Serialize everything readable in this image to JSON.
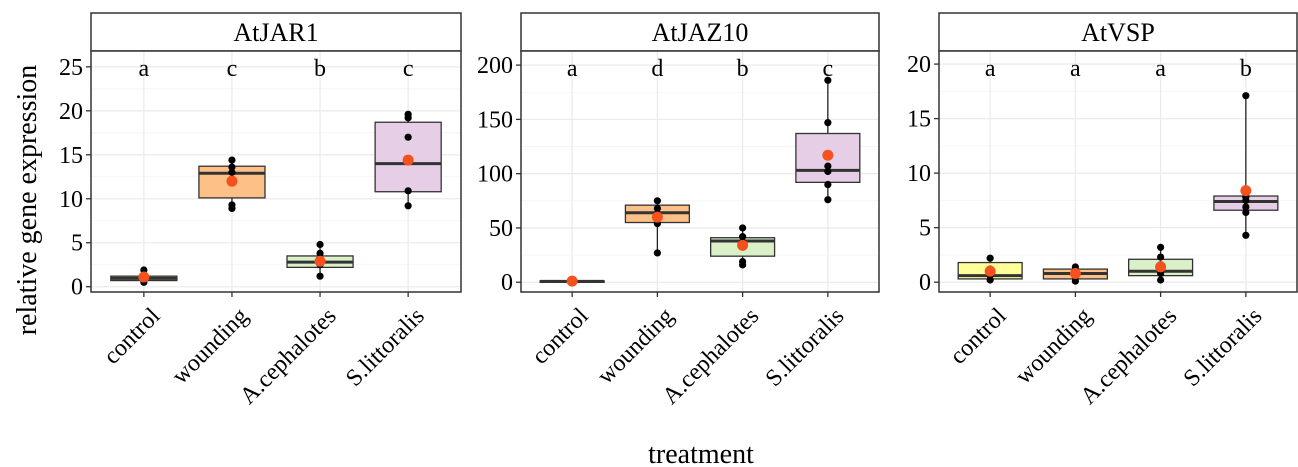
{
  "chart_data": {
    "type": "box",
    "ylabel": "relative gene expression",
    "xlabel": "treatment",
    "categories": [
      "control",
      "wounding",
      "A.cephalotes",
      "S.littoralis"
    ],
    "colors": {
      "control": "#ffff99",
      "wounding": "#fdc086",
      "A.cephalotes": "#d9f0c9",
      "S.littoralis": "#e6cfe6",
      "points": "#000000",
      "mean": "#f4511e"
    },
    "panels": [
      {
        "title": "AtJAR1",
        "ylim": [
          -0.6,
          26.8
        ],
        "yticks": [
          0,
          5,
          10,
          15,
          20,
          25
        ],
        "letters": [
          "a",
          "c",
          "b",
          "c"
        ],
        "boxes": [
          {
            "q1": 0.7,
            "median": 0.95,
            "q3": 1.2,
            "lo": 0.5,
            "hi": 1.9,
            "mean": 1.1,
            "points": [
              0.5,
              0.8,
              1.0,
              1.2,
              1.9
            ]
          },
          {
            "q1": 10.1,
            "median": 12.9,
            "q3": 13.7,
            "lo": 8.9,
            "hi": 14.5,
            "mean": 12.0,
            "points": [
              8.9,
              9.3,
              13.0,
              13.6,
              14.4
            ]
          },
          {
            "q1": 2.2,
            "median": 2.8,
            "q3": 3.5,
            "lo": 1.2,
            "hi": 4.8,
            "mean": 2.9,
            "points": [
              1.2,
              2.5,
              3.0,
              3.8,
              4.8
            ]
          },
          {
            "q1": 10.8,
            "median": 14.0,
            "q3": 18.7,
            "lo": 9.2,
            "hi": 19.6,
            "mean": 14.4,
            "points": [
              9.2,
              10.9,
              17.0,
              19.2,
              19.6
            ]
          }
        ]
      },
      {
        "title": "AtJAZ10",
        "ylim": [
          -9,
          213
        ],
        "yticks": [
          0,
          50,
          100,
          150,
          200
        ],
        "letters": [
          "a",
          "d",
          "b",
          "c"
        ],
        "boxes": [
          {
            "q1": 0.3,
            "median": 0.8,
            "q3": 1.3,
            "lo": 0.1,
            "hi": 1.8,
            "mean": 1.0,
            "points": [
              0.3,
              1.0
            ]
          },
          {
            "q1": 55,
            "median": 64,
            "q3": 71,
            "lo": 27,
            "hi": 75,
            "mean": 60,
            "points": [
              27,
              54,
              58,
              63,
              68,
              75
            ]
          },
          {
            "q1": 24,
            "median": 38,
            "q3": 41,
            "lo": 16,
            "hi": 50,
            "mean": 34,
            "points": [
              16,
              19,
              37,
              42,
              50
            ]
          },
          {
            "q1": 92,
            "median": 103,
            "q3": 137,
            "lo": 76,
            "hi": 186,
            "mean": 117,
            "points": [
              76,
              90,
              102,
              107,
              147,
              186
            ]
          }
        ]
      },
      {
        "title": "AtVSP",
        "ylim": [
          -0.9,
          21.2
        ],
        "yticks": [
          0,
          5,
          10,
          15,
          20
        ],
        "letters": [
          "a",
          "a",
          "a",
          "b"
        ],
        "boxes": [
          {
            "q1": 0.3,
            "median": 0.6,
            "q3": 1.8,
            "lo": 0.2,
            "hi": 2.2,
            "mean": 1.0,
            "points": [
              0.2,
              0.6,
              1.2,
              2.2
            ]
          },
          {
            "q1": 0.3,
            "median": 0.8,
            "q3": 1.2,
            "lo": 0.1,
            "hi": 1.4,
            "mean": 0.8,
            "points": [
              0.1,
              0.5,
              0.9,
              1.4
            ]
          },
          {
            "q1": 0.6,
            "median": 1.0,
            "q3": 2.1,
            "lo": 0.2,
            "hi": 3.2,
            "mean": 1.4,
            "points": [
              0.2,
              0.8,
              1.6,
              2.3,
              3.2
            ]
          },
          {
            "q1": 6.6,
            "median": 7.4,
            "q3": 7.9,
            "lo": 4.3,
            "hi": 17.1,
            "mean": 8.4,
            "points": [
              4.3,
              6.4,
              6.9,
              7.5,
              7.8,
              17.1
            ]
          }
        ]
      }
    ]
  }
}
